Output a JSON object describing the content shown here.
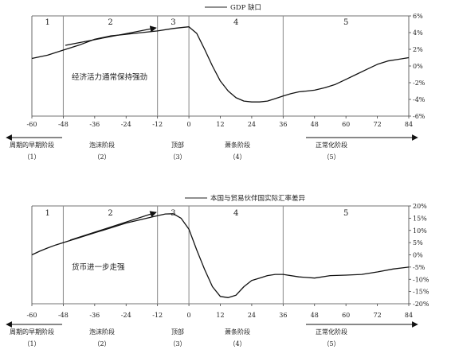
{
  "chart_data": [
    {
      "type": "line",
      "legend": "GDP 缺口",
      "x_ticks": [
        -60,
        -48,
        -36,
        -24,
        -12,
        0,
        12,
        24,
        36,
        48,
        60,
        72,
        84
      ],
      "xlim": [
        -60,
        84
      ],
      "y_ticks": [
        "6%",
        "4%",
        "2%",
        "0%",
        "-2%",
        "-4%",
        "-6%"
      ],
      "ylim": [
        -6,
        6
      ],
      "stage_dividers": [
        -48,
        -12,
        0,
        36
      ],
      "stage_numbers": [
        "1",
        "2",
        "3",
        "4",
        "5"
      ],
      "annotation": "经济活力通常保持强劲",
      "series": [
        {
          "x": [
            -60,
            -54,
            -48,
            -42,
            -36,
            -30,
            -24,
            -18,
            -12,
            -6,
            -3,
            0,
            3,
            6,
            9,
            12,
            15,
            18,
            21,
            24,
            27,
            30,
            33,
            36,
            39,
            42,
            45,
            48,
            52,
            56,
            60,
            64,
            68,
            72,
            76,
            80,
            84
          ],
          "y": [
            0.9,
            1.3,
            1.9,
            2.5,
            3.2,
            3.6,
            3.8,
            4.0,
            4.2,
            4.5,
            4.6,
            4.7,
            3.9,
            2.0,
            0.0,
            -1.8,
            -3.0,
            -3.8,
            -4.2,
            -4.3,
            -4.3,
            -4.2,
            -3.9,
            -3.6,
            -3.3,
            -3.1,
            -3.0,
            -2.9,
            -2.6,
            -2.2,
            -1.6,
            -1.0,
            -0.4,
            0.2,
            0.6,
            0.8,
            1.0
          ]
        }
      ]
    },
    {
      "type": "line",
      "legend": "本国与贸易伙伴国实际汇率差异",
      "x_ticks": [
        -60,
        -48,
        -36,
        -24,
        -12,
        0,
        12,
        24,
        36,
        48,
        60,
        72,
        84
      ],
      "xlim": [
        -60,
        84
      ],
      "y_ticks": [
        "20%",
        "15%",
        "10%",
        "5%",
        "0%",
        "-5%",
        "-10%",
        "-15%",
        "-20%"
      ],
      "ylim": [
        -20,
        20
      ],
      "stage_dividers": [
        -48,
        -12,
        0,
        36
      ],
      "stage_numbers": [
        "1",
        "2",
        "3",
        "4",
        "5"
      ],
      "annotation": "货币进一步走强",
      "series": [
        {
          "x": [
            -60,
            -57,
            -54,
            -51,
            -48,
            -42,
            -36,
            -30,
            -24,
            -18,
            -12,
            -9,
            -6,
            -3,
            0,
            3,
            6,
            9,
            12,
            15,
            18,
            21,
            24,
            27,
            30,
            33,
            36,
            42,
            48,
            54,
            60,
            66,
            72,
            78,
            84
          ],
          "y": [
            0.0,
            1.5,
            2.8,
            4.0,
            5.0,
            7.0,
            9.0,
            11.0,
            13.0,
            14.5,
            16.0,
            16.7,
            16.8,
            15.0,
            10.5,
            2.0,
            -6.0,
            -13.0,
            -17.0,
            -17.5,
            -16.5,
            -13.0,
            -10.5,
            -9.5,
            -8.5,
            -8.0,
            -8.0,
            -9.0,
            -9.5,
            -8.5,
            -8.3,
            -8.0,
            -7.0,
            -5.8,
            -5.0
          ]
        }
      ]
    }
  ],
  "stages": [
    {
      "label": "周期的早期阶段",
      "num": "（1）"
    },
    {
      "label": "泡沫阶段",
      "num": "（2）"
    },
    {
      "label": "顶部",
      "num": "（3）"
    },
    {
      "label": "萧条阶段",
      "num": "（4）"
    },
    {
      "label": "正常化阶段",
      "num": "（5）"
    }
  ]
}
